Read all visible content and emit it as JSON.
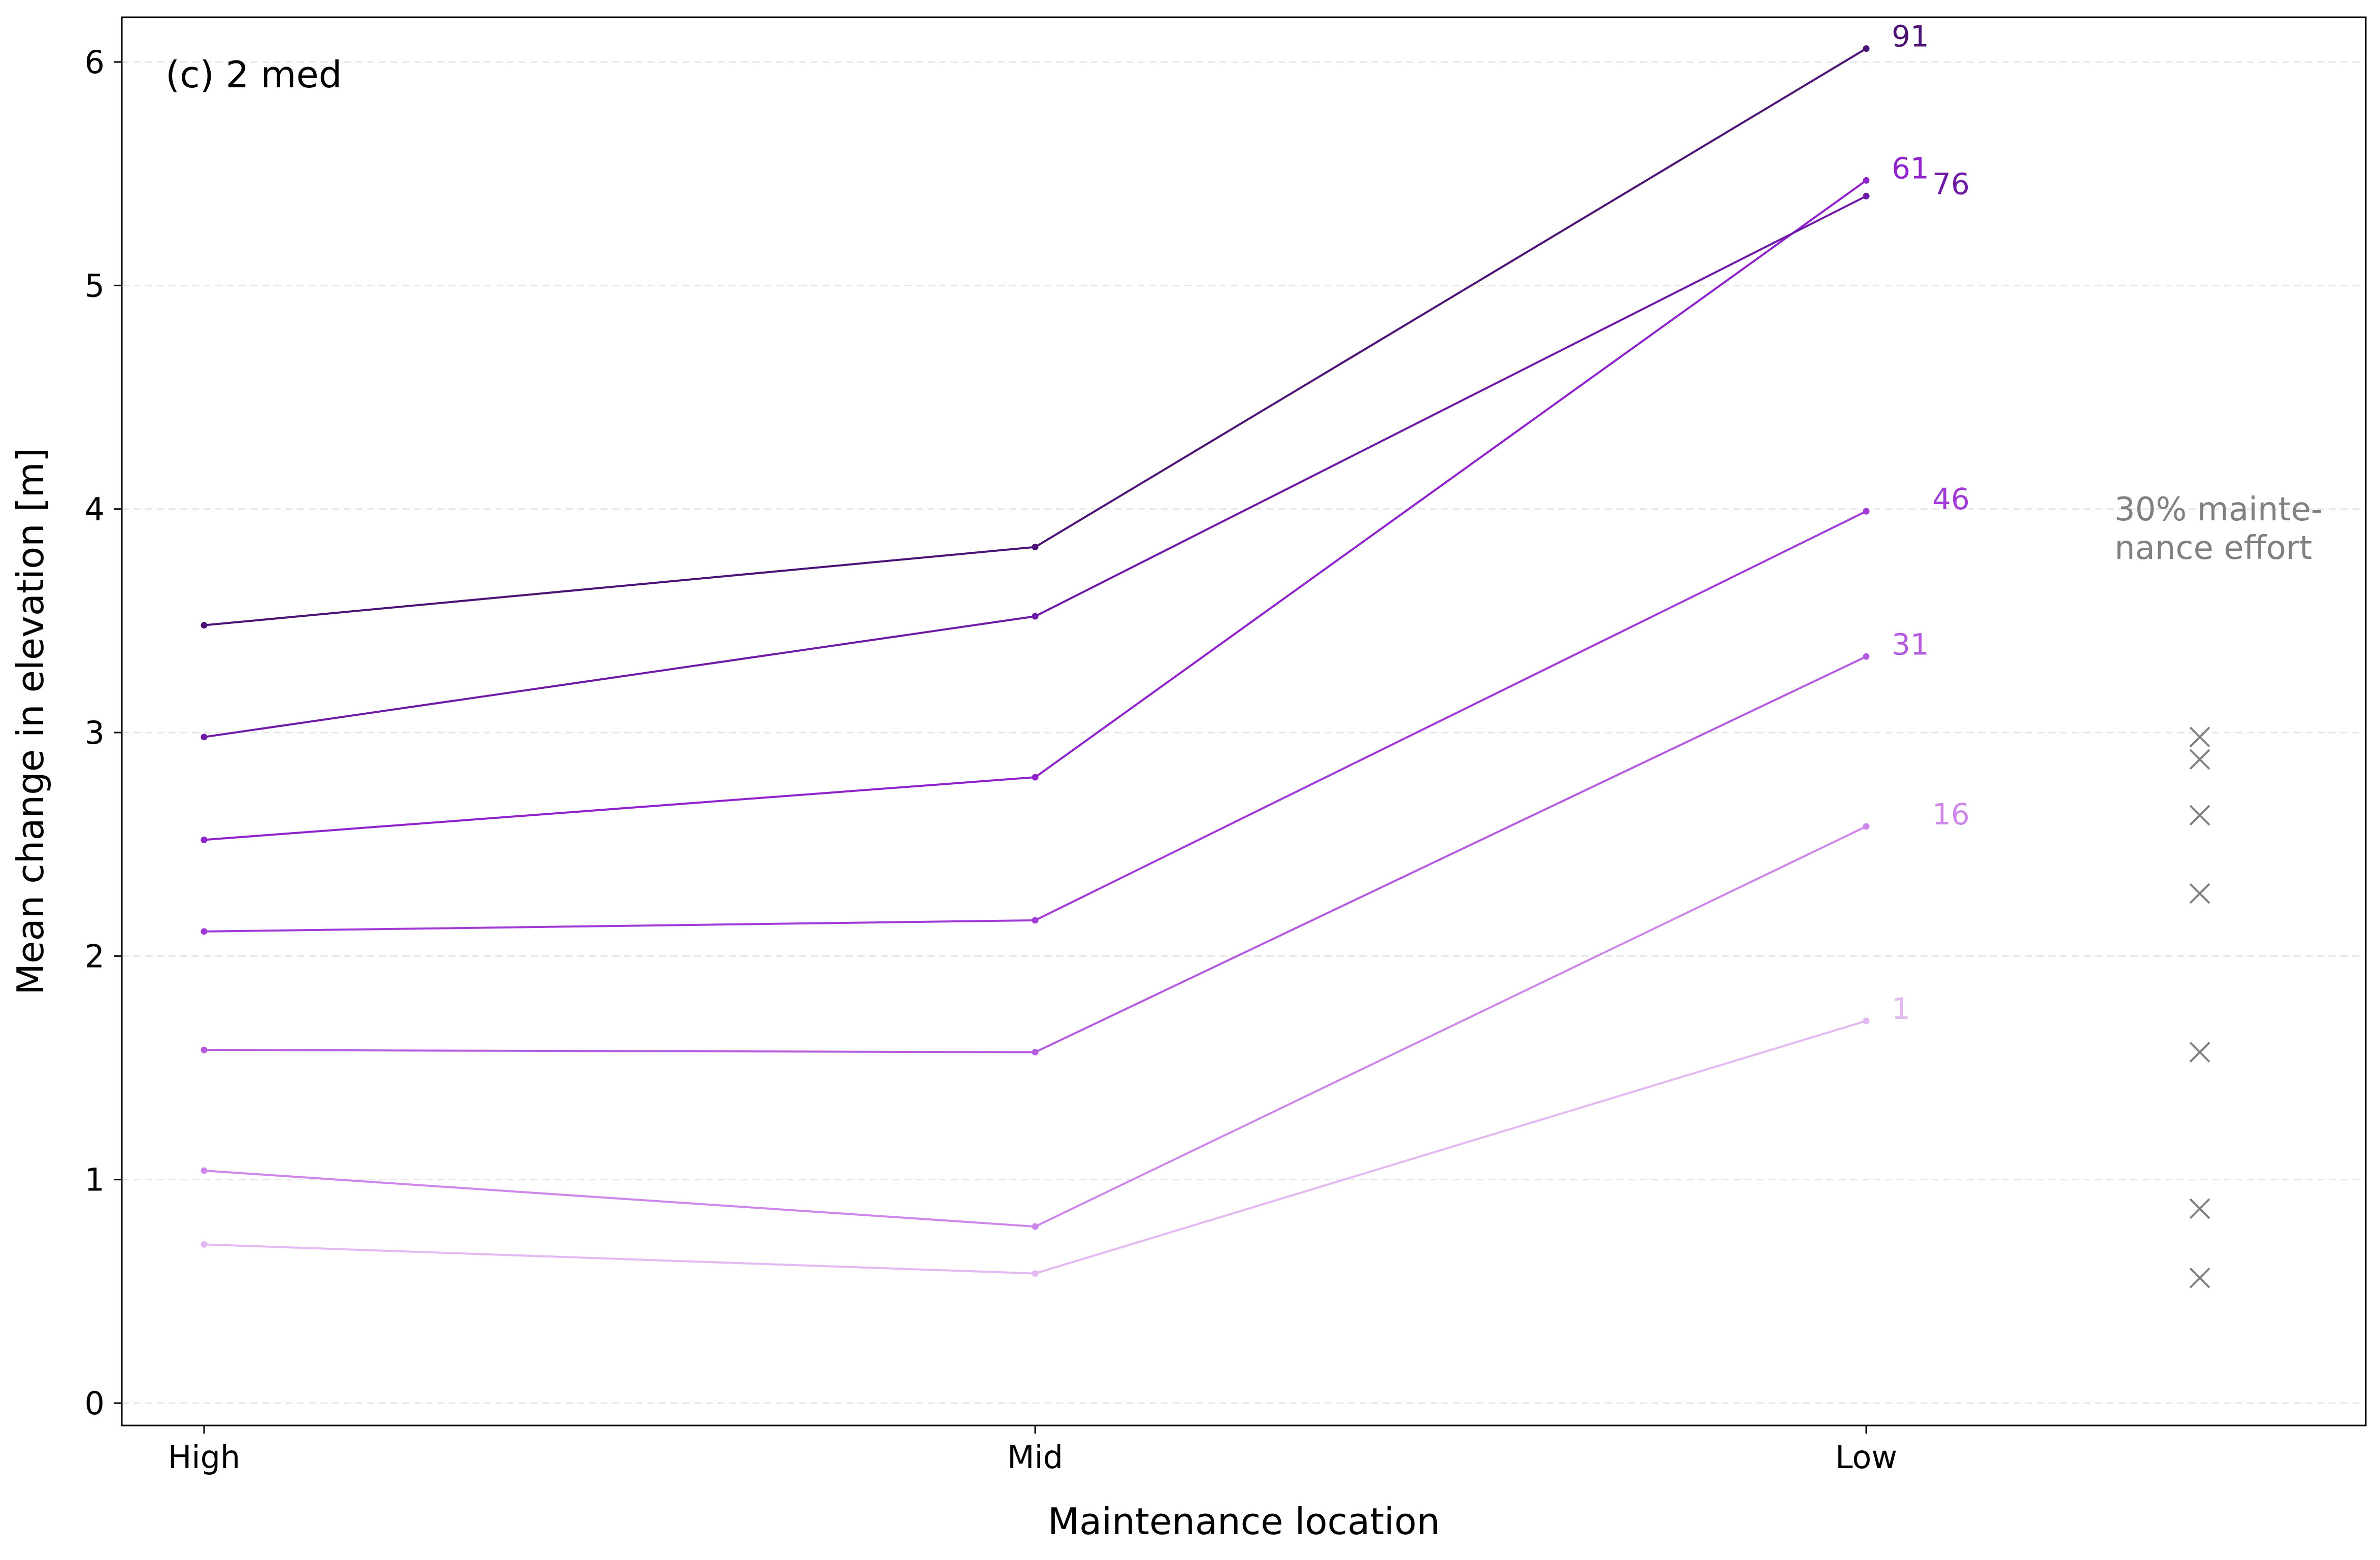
{
  "chart_data": {
    "type": "line",
    "title": "(c) 2 med",
    "xlabel": "Maintenance location",
    "ylabel": "Mean change in elevation [m]",
    "categories": [
      "High",
      "Mid",
      "Low"
    ],
    "ylim": [
      -0.1,
      6.2
    ],
    "yticks": [
      0,
      1,
      2,
      3,
      4,
      5,
      6
    ],
    "grid": "horizontal dashed",
    "series": [
      {
        "name": "1",
        "values": [
          0.71,
          0.58,
          1.71
        ],
        "color": "#e3b9f3"
      },
      {
        "name": "16",
        "values": [
          1.04,
          0.79,
          2.58
        ],
        "color": "#cf86ea"
      },
      {
        "name": "31",
        "values": [
          1.58,
          1.57,
          3.34
        ],
        "color": "#b55be0"
      },
      {
        "name": "46",
        "values": [
          2.11,
          2.16,
          3.99
        ],
        "color": "#a13ad6"
      },
      {
        "name": "61",
        "values": [
          2.52,
          2.8,
          5.47
        ],
        "color": "#8f22cc"
      },
      {
        "name": "76",
        "values": [
          2.98,
          3.52,
          5.4
        ],
        "color": "#6e1aa6"
      },
      {
        "name": "91",
        "values": [
          3.48,
          3.83,
          6.06
        ],
        "color": "#4c1175"
      }
    ],
    "reference": {
      "label": "30% mainte-\nnance effort",
      "marker": "x",
      "color": "#808080",
      "values": [
        2.98,
        2.88,
        2.63,
        2.28,
        1.57,
        0.87,
        0.56
      ]
    }
  }
}
